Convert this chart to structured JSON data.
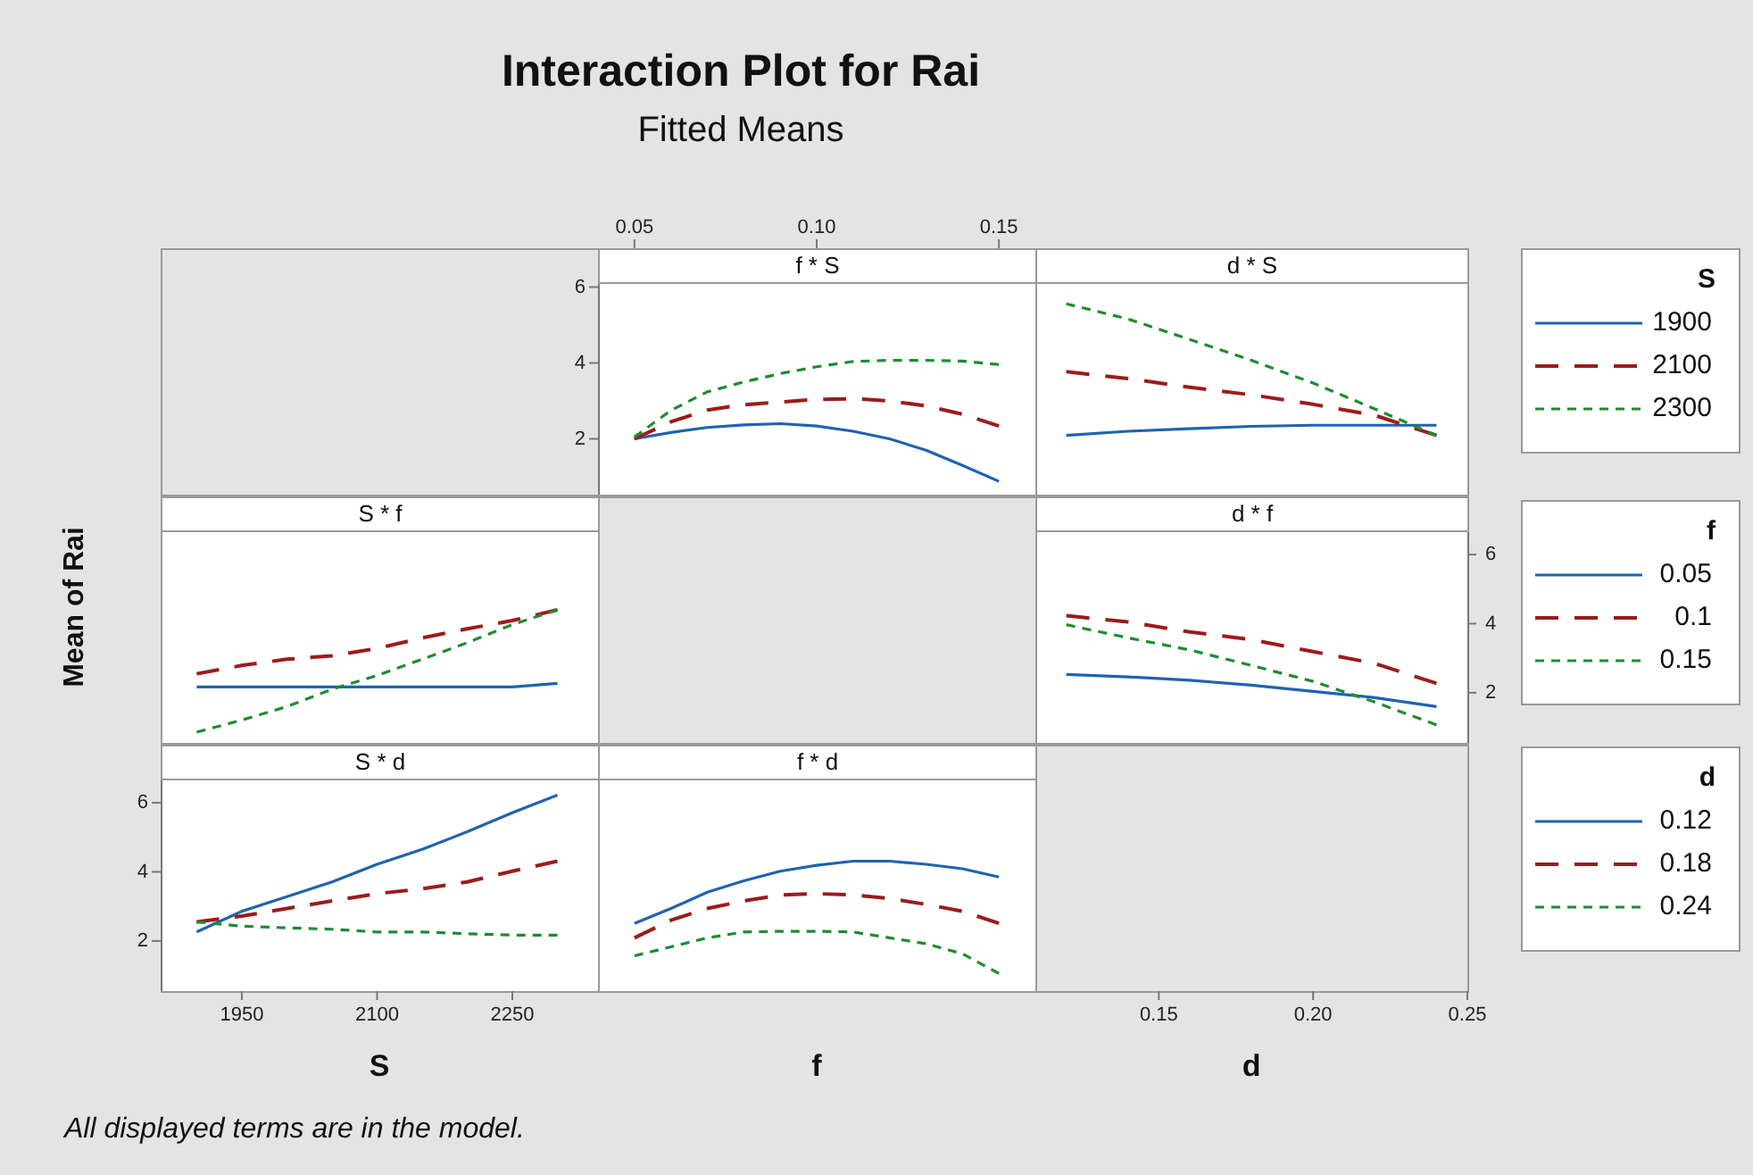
{
  "chart_data": [
    {
      "type": "other",
      "title": "Interaction Plot for Rai",
      "subtitle": "Fitted Means",
      "annotations": [
        "All displayed terms are in the model."
      ]
    },
    {
      "type": "line",
      "title": "f * S",
      "x": [
        0.05,
        0.06,
        0.07,
        0.08,
        0.09,
        0.1,
        0.11,
        0.12,
        0.13,
        0.14,
        0.15
      ],
      "xlim": [
        0.04,
        0.16
      ],
      "xticks": [
        0.05,
        {
          "value": 0.1,
          "label": "0.10"
        },
        0.15
      ],
      "ylim": [
        0.53,
        6.13
      ],
      "yticks": [
        2,
        4,
        6
      ],
      "series": [
        {
          "color": "#1f63b0",
          "line_style": "solid",
          "values": [
            2.0,
            2.17,
            2.3,
            2.37,
            2.4,
            2.34,
            2.2,
            2.0,
            1.7,
            1.3,
            0.88
          ]
        },
        {
          "color": "#9b1c1c",
          "line_style": "dashed",
          "values": [
            2.0,
            2.45,
            2.76,
            2.9,
            2.97,
            3.04,
            3.06,
            3.0,
            2.87,
            2.65,
            2.34
          ]
        },
        {
          "color": "#1e8c32",
          "line_style": "dotted",
          "values": [
            2.05,
            2.75,
            3.24,
            3.5,
            3.72,
            3.9,
            4.04,
            4.07,
            4.07,
            4.05,
            3.96
          ]
        }
      ]
    },
    {
      "type": "line",
      "title": "d * S",
      "x": [
        0.12,
        0.14,
        0.16,
        0.18,
        0.2,
        0.22,
        0.24
      ],
      "xlim": [
        0.11,
        0.25
      ],
      "ylim": [
        0.53,
        6.13
      ],
      "legend": "right",
      "legend_title": "S",
      "series": [
        {
          "name": "1900",
          "color": "#1f63b0",
          "line_style": "solid",
          "values": [
            2.09,
            2.2,
            2.27,
            2.33,
            2.36,
            2.36,
            2.36
          ]
        },
        {
          "name": "2100",
          "color": "#9b1c1c",
          "line_style": "dashed",
          "values": [
            3.77,
            3.59,
            3.36,
            3.16,
            2.91,
            2.62,
            2.09
          ]
        },
        {
          "name": "2300",
          "color": "#1e8c32",
          "line_style": "dotted",
          "values": [
            5.56,
            5.16,
            4.62,
            4.07,
            3.47,
            2.79,
            2.09
          ]
        }
      ]
    },
    {
      "type": "line",
      "title": "S * f",
      "ylabel": "Mean of Rai",
      "x": [
        1900,
        1950,
        2000,
        2050,
        2100,
        2150,
        2200,
        2250,
        2300
      ],
      "xlim": [
        1860,
        2345
      ],
      "ylim": [
        0.55,
        6.7
      ],
      "series": [
        {
          "color": "#1f63b0",
          "line_style": "solid",
          "values": [
            2.17,
            2.17,
            2.17,
            2.17,
            2.17,
            2.17,
            2.17,
            2.17,
            2.27
          ]
        },
        {
          "color": "#9b1c1c",
          "line_style": "dashed",
          "values": [
            2.55,
            2.79,
            2.97,
            3.07,
            3.28,
            3.59,
            3.85,
            4.09,
            4.4
          ]
        },
        {
          "color": "#1e8c32",
          "line_style": "dotted",
          "values": [
            0.86,
            1.21,
            1.6,
            2.1,
            2.5,
            2.97,
            3.45,
            3.97,
            4.4
          ]
        }
      ]
    },
    {
      "type": "line",
      "title": "d * f",
      "xlabel": "d",
      "x": [
        0.12,
        0.14,
        0.16,
        0.18,
        0.2,
        0.22,
        0.24
      ],
      "xlim": [
        0.11,
        0.25
      ],
      "xticks": [
        0.15,
        {
          "value": 0.2,
          "label": "0.20"
        },
        0.25
      ],
      "y2lim": [
        0.55,
        6.7
      ],
      "y2ticks": [
        2,
        4,
        6
      ],
      "legend": "right",
      "legend_title": "f",
      "series": [
        {
          "name": "0.05",
          "color": "#1f63b0",
          "line_style": "solid",
          "axis": "y2",
          "values": [
            2.53,
            2.46,
            2.36,
            2.22,
            2.04,
            1.86,
            1.6
          ]
        },
        {
          "name": "0.1",
          "color": "#9b1c1c",
          "line_style": "dashed",
          "axis": "y2",
          "values": [
            4.23,
            4.05,
            3.76,
            3.54,
            3.19,
            2.85,
            2.27
          ]
        },
        {
          "name": "0.15",
          "color": "#1e8c32",
          "line_style": "dotted",
          "axis": "y2",
          "values": [
            3.97,
            3.59,
            3.24,
            2.79,
            2.33,
            1.73,
            1.07
          ]
        }
      ]
    },
    {
      "type": "line",
      "title": "S * d",
      "xlabel": "S",
      "x": [
        1900,
        1950,
        2000,
        2050,
        2100,
        2150,
        2200,
        2250,
        2300
      ],
      "xlim": [
        1860,
        2345
      ],
      "xticks": [
        1950,
        2100,
        2250
      ],
      "ylim": [
        0.55,
        6.7
      ],
      "yticks": [
        2,
        4,
        6
      ],
      "series": [
        {
          "color": "#1f63b0",
          "line_style": "solid",
          "values": [
            2.26,
            2.86,
            3.28,
            3.71,
            4.22,
            4.65,
            5.16,
            5.71,
            6.22
          ]
        },
        {
          "color": "#9b1c1c",
          "line_style": "dashed",
          "values": [
            2.55,
            2.72,
            2.94,
            3.16,
            3.37,
            3.51,
            3.71,
            4.02,
            4.31
          ]
        },
        {
          "color": "#1e8c32",
          "line_style": "dotted",
          "values": [
            2.55,
            2.43,
            2.38,
            2.34,
            2.26,
            2.26,
            2.21,
            2.17,
            2.17
          ]
        }
      ]
    },
    {
      "type": "line",
      "title": "f * d",
      "xlabel": "f",
      "x": [
        0.05,
        0.06,
        0.07,
        0.08,
        0.09,
        0.1,
        0.11,
        0.12,
        0.13,
        0.14,
        0.15
      ],
      "xlim": [
        0.04,
        0.16
      ],
      "ylim": [
        0.55,
        6.7
      ],
      "legend": "right",
      "legend_title": "d",
      "series": [
        {
          "name": "0.12",
          "color": "#1f63b0",
          "line_style": "solid",
          "values": [
            2.51,
            2.94,
            3.41,
            3.74,
            4.02,
            4.19,
            4.31,
            4.31,
            4.22,
            4.09,
            3.85
          ]
        },
        {
          "name": "0.18",
          "color": "#9b1c1c",
          "line_style": "dashed",
          "values": [
            2.09,
            2.6,
            2.94,
            3.16,
            3.33,
            3.37,
            3.33,
            3.23,
            3.06,
            2.86,
            2.51
          ]
        },
        {
          "name": "0.24",
          "color": "#1e8c32",
          "line_style": "dotted",
          "values": [
            1.57,
            1.83,
            2.09,
            2.26,
            2.28,
            2.28,
            2.26,
            2.09,
            1.92,
            1.63,
            1.06
          ]
        }
      ]
    }
  ]
}
